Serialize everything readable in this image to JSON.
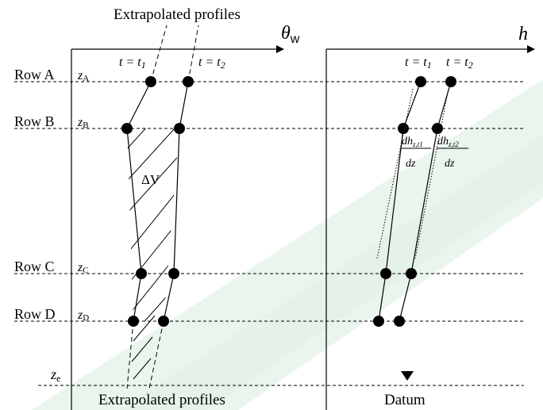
{
  "labels": {
    "top_extrapolated": "Extrapolated profiles",
    "bottom_extrapolated": "Extrapolated profiles",
    "datum": "Datum",
    "theta_axis_symbol": "θ",
    "theta_axis_sub": "w",
    "h_axis": "h",
    "delta_v": "ΔV",
    "t_eq": "t = t",
    "t1_sub": "1",
    "t2_sub": "2",
    "dh_num": "dh",
    "dh_sub1": "z,t1",
    "dh_sub2": "z,t2",
    "dz": "dz"
  },
  "rows": [
    {
      "name": "Row A",
      "z": "z",
      "z_sub": "A"
    },
    {
      "name": "Row B",
      "z": "z",
      "z_sub": "B"
    },
    {
      "name": "Row C",
      "z": "z",
      "z_sub": "C"
    },
    {
      "name": "Row D",
      "z": "z",
      "z_sub": "D"
    }
  ],
  "ze": {
    "z": "z",
    "sub": "e"
  },
  "colors": {
    "background_diagonal": "#e6f3ea",
    "ink": "#000000"
  }
}
